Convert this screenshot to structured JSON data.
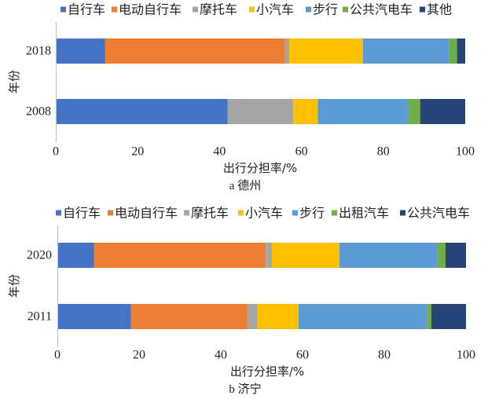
{
  "chart_data": [
    {
      "type": "bar",
      "orientation": "horizontal",
      "stacked": true,
      "caption": "a 德州",
      "ylabel": "年份",
      "xlabel": "出行分担率/%",
      "categories": [
        "2018",
        "2008"
      ],
      "xlim": [
        0,
        100
      ],
      "xticks": [
        0,
        20,
        40,
        60,
        80,
        100
      ],
      "grid": false,
      "legend_position": "top",
      "series": [
        {
          "name": "自行车",
          "color": "#4472C4",
          "values": [
            12,
            42
          ]
        },
        {
          "name": "电动自行车",
          "color": "#ED7D31",
          "values": [
            44,
            0
          ]
        },
        {
          "name": "摩托车",
          "color": "#A5A5A5",
          "values": [
            1,
            16
          ]
        },
        {
          "name": "小汽车",
          "color": "#FFC000",
          "values": [
            18,
            6
          ]
        },
        {
          "name": "步行",
          "color": "#5B9BD5",
          "values": [
            21,
            22
          ]
        },
        {
          "name": "公共汽电车",
          "color": "#70AD47",
          "values": [
            2,
            3
          ]
        },
        {
          "name": "其他",
          "color": "#264478",
          "values": [
            2,
            11
          ]
        }
      ]
    },
    {
      "type": "bar",
      "orientation": "horizontal",
      "stacked": true,
      "caption": "b 济宁",
      "ylabel": "年份",
      "xlabel": "出行分担率/%",
      "categories": [
        "2020",
        "2011"
      ],
      "xlim": [
        0,
        100
      ],
      "xticks": [
        0,
        20,
        40,
        60,
        80,
        100
      ],
      "grid": false,
      "legend_position": "top",
      "series": [
        {
          "name": "自行车",
          "color": "#4472C4",
          "values": [
            9,
            18
          ]
        },
        {
          "name": "电动自行车",
          "color": "#ED7D31",
          "values": [
            42,
            28.5
          ]
        },
        {
          "name": "摩托车",
          "color": "#A5A5A5",
          "values": [
            1.5,
            2.5
          ]
        },
        {
          "name": "小汽车",
          "color": "#FFC000",
          "values": [
            16.5,
            10
          ]
        },
        {
          "name": "步行",
          "color": "#5B9BD5",
          "values": [
            24,
            31.5
          ]
        },
        {
          "name": "出租汽车",
          "color": "#70AD47",
          "values": [
            2,
            1
          ]
        },
        {
          "name": "公共汽电车",
          "color": "#264478",
          "values": [
            5,
            8.5
          ]
        }
      ]
    }
  ]
}
